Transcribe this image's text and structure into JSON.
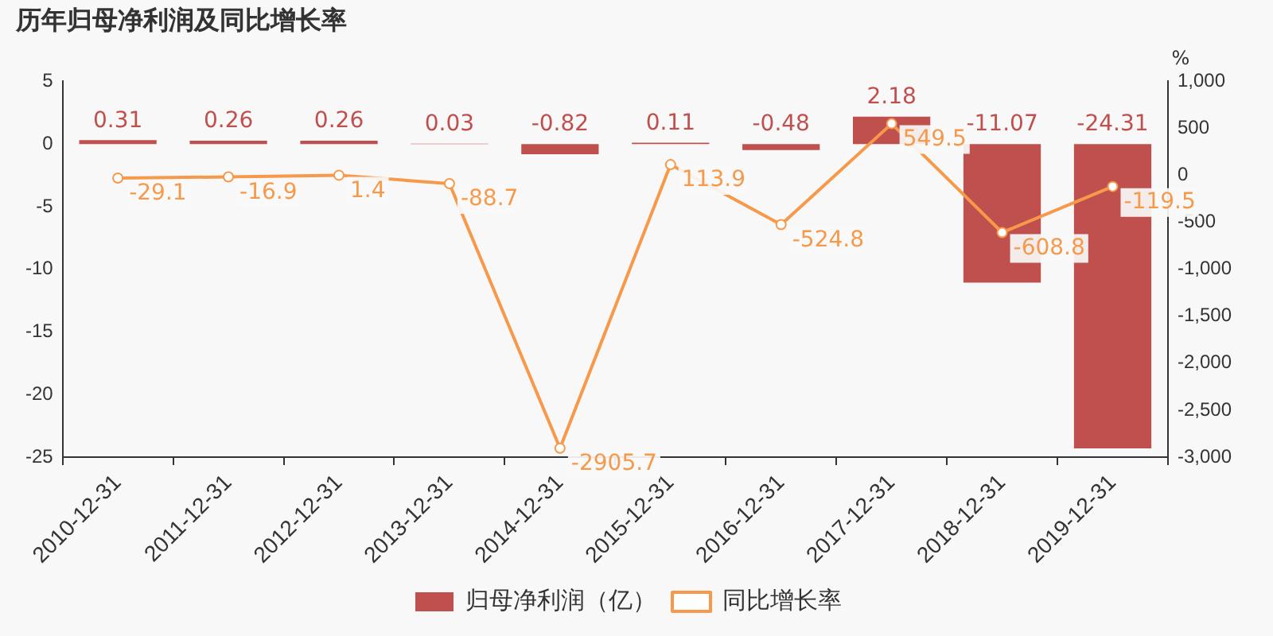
{
  "chart_data": {
    "type": "bar",
    "title": "历年归母净利润及同比增长率",
    "y2label": "%",
    "categories": [
      "2010-12-31",
      "2011-12-31",
      "2012-12-31",
      "2013-12-31",
      "2014-12-31",
      "2015-12-31",
      "2016-12-31",
      "2017-12-31",
      "2018-12-31",
      "2019-12-31"
    ],
    "series": [
      {
        "name": "归母净利润（亿）",
        "color": "#c0504d",
        "values": [
          0.31,
          0.26,
          0.26,
          0.03,
          -0.82,
          0.11,
          -0.48,
          2.18,
          -11.07,
          -24.31
        ]
      },
      {
        "name": "同比增长率",
        "type": "line",
        "axis": "y2",
        "color": "#f7994a",
        "marker": "circle",
        "values": [
          -29.1,
          -16.9,
          1.4,
          -88.7,
          -2905.7,
          113.9,
          -524.8,
          549.5,
          -608.8,
          -119.5
        ]
      }
    ],
    "ylim": [
      -25,
      5
    ],
    "yticks": [
      -25,
      -20,
      -15,
      -10,
      -5,
      0,
      5
    ],
    "y2lim": [
      -3000,
      1000
    ],
    "y2ticks": [
      {
        "value": -3000,
        "label": "-3,000"
      },
      {
        "value": -2500,
        "label": "-2,500"
      },
      {
        "value": -2000,
        "label": "-2,000"
      },
      {
        "value": -1500,
        "label": "-1,500"
      },
      {
        "value": -1000,
        "label": "-1,000"
      },
      {
        "value": -500,
        "label": "-500"
      },
      {
        "value": 0,
        "label": "0"
      },
      {
        "value": 500,
        "label": "500"
      },
      {
        "value": 1000,
        "label": "1,000"
      }
    ],
    "grid": false,
    "legend": "bottom",
    "data_labels": true
  }
}
